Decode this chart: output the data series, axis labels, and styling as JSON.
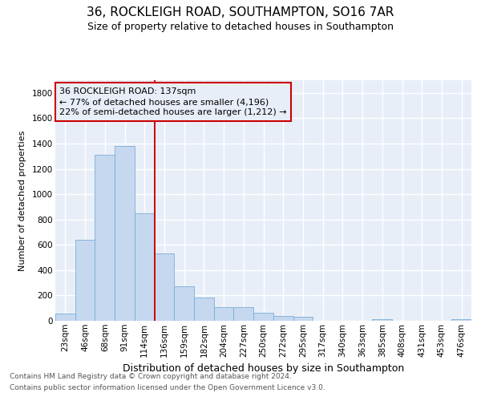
{
  "title1": "36, ROCKLEIGH ROAD, SOUTHAMPTON, SO16 7AR",
  "title2": "Size of property relative to detached houses in Southampton",
  "xlabel": "Distribution of detached houses by size in Southampton",
  "ylabel": "Number of detached properties",
  "categories": [
    "23sqm",
    "46sqm",
    "68sqm",
    "91sqm",
    "114sqm",
    "136sqm",
    "159sqm",
    "182sqm",
    "204sqm",
    "227sqm",
    "250sqm",
    "272sqm",
    "295sqm",
    "317sqm",
    "340sqm",
    "363sqm",
    "385sqm",
    "408sqm",
    "431sqm",
    "453sqm",
    "476sqm"
  ],
  "values": [
    55,
    640,
    1310,
    1380,
    850,
    530,
    275,
    185,
    105,
    105,
    65,
    40,
    30,
    0,
    0,
    0,
    15,
    0,
    0,
    0,
    15
  ],
  "bar_color": "#c5d8f0",
  "bar_edge_color": "#7aadd4",
  "vline_position": 4.5,
  "vline_color": "#cc0000",
  "annotation_line1": "36 ROCKLEIGH ROAD: 137sqm",
  "annotation_line2": "← 77% of detached houses are smaller (4,196)",
  "annotation_line3": "22% of semi-detached houses are larger (1,212) →",
  "footnote1": "Contains HM Land Registry data © Crown copyright and database right 2024.",
  "footnote2": "Contains public sector information licensed under the Open Government Licence v3.0.",
  "ylim": [
    0,
    1900
  ],
  "yticks": [
    0,
    200,
    400,
    600,
    800,
    1000,
    1200,
    1400,
    1600,
    1800
  ],
  "bg_color": "#ffffff",
  "plot_bg_color": "#e8eef8",
  "grid_color": "#ffffff",
  "title1_fontsize": 11,
  "title2_fontsize": 9,
  "xlabel_fontsize": 9,
  "ylabel_fontsize": 8,
  "annot_fontsize": 8,
  "tick_fontsize": 7.5,
  "footnote_fontsize": 6.5
}
